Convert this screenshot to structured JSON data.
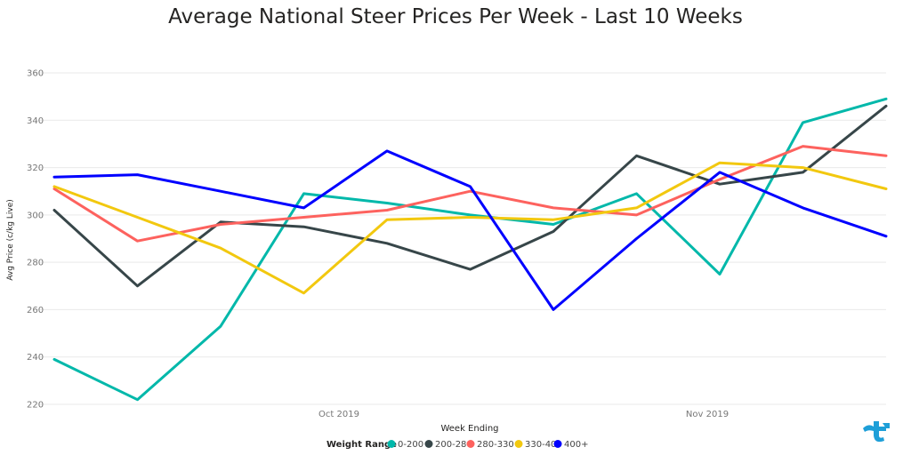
{
  "title": "Average National Steer Prices Per Week - Last 10 Weeks",
  "legend_title": "Weight Range",
  "colors": {
    "grid": "#e9e9e9",
    "logo": "#1e9fd8"
  },
  "chart_data": {
    "type": "line",
    "title": "Average National Steer Prices Per Week - Last 10 Weeks",
    "xlabel": "Week Ending",
    "ylabel": "Avg Price (c/kg Live)",
    "x_tick_labels": [
      "Oct 2019",
      "Nov 2019"
    ],
    "y_ticks": [
      220,
      240,
      260,
      280,
      300,
      320,
      340,
      360
    ],
    "ylim": [
      220,
      360
    ],
    "grid": true,
    "legend_position": "bottom",
    "n_points": 11,
    "series": [
      {
        "name": "0-200",
        "color": "#01b8aa",
        "values": [
          239,
          222,
          253,
          309,
          305,
          300,
          296,
          309,
          275,
          339,
          349
        ]
      },
      {
        "name": "200-280",
        "color": "#374649",
        "values": [
          302,
          270,
          297,
          295,
          288,
          277,
          293,
          325,
          313,
          318,
          346
        ]
      },
      {
        "name": "280-330",
        "color": "#fd625e",
        "values": [
          311,
          289,
          296,
          299,
          302,
          310,
          303,
          300,
          315,
          329,
          325
        ]
      },
      {
        "name": "330-400",
        "color": "#f2c80f",
        "values": [
          312,
          299,
          286,
          267,
          298,
          299,
          298,
          303,
          322,
          320,
          311
        ]
      },
      {
        "name": "400+",
        "color": "#0000ff",
        "values": [
          316,
          317,
          310,
          303,
          327,
          312,
          260,
          290,
          318,
          303,
          291
        ]
      }
    ]
  }
}
